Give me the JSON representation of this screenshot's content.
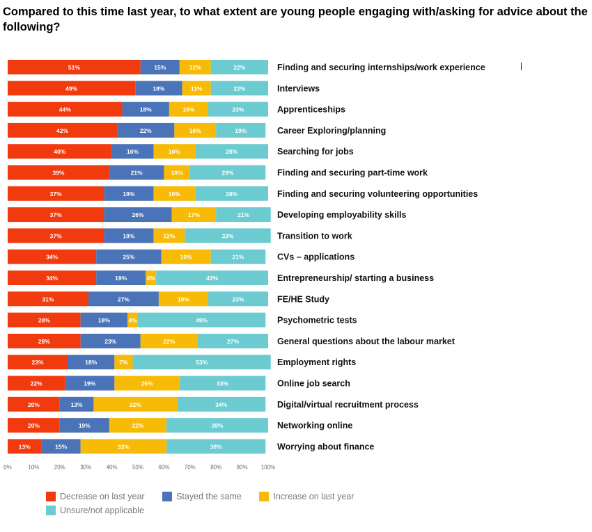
{
  "title": "Compared to this time last year, to what extent are young people engaging with/asking for advice about the following?",
  "chart_data": {
    "type": "bar",
    "orientation": "horizontal",
    "stacked": true,
    "title": "Compared to this time last year, to what extent are young people engaging with/asking for advice about the following?",
    "xlim": [
      0,
      100
    ],
    "x_ticks": [
      "0%",
      "10%",
      "20%",
      "30%",
      "40%",
      "50%",
      "60%",
      "70%",
      "80%",
      "90%",
      "100%"
    ],
    "legend_position": "bottom-left",
    "grid": false,
    "categories": [
      "Finding and securing internships/work experience",
      "Interviews",
      "Apprenticeships",
      "Career Exploring/planning",
      "Searching for jobs",
      "Finding and securing part-time work",
      "Finding and securing volunteering opportunities",
      "Developing employability skills",
      "Transition to work",
      "CVs – applications",
      "Entrepreneurship/ starting a business",
      "FE/HE Study",
      "Psychometric tests",
      "General questions about the labour market",
      "Employment rights",
      "Online job search",
      "Digital/virtual recruitment process",
      "Networking online",
      "Worrying about finance"
    ],
    "series": [
      {
        "name": "Decrease on last year",
        "color": "#f23a0f",
        "values": [
          51,
          49,
          44,
          42,
          40,
          39,
          37,
          37,
          37,
          34,
          34,
          31,
          28,
          28,
          23,
          22,
          20,
          20,
          13
        ]
      },
      {
        "name": "Stayed the same",
        "color": "#4a73b8",
        "values": [
          15,
          18,
          18,
          22,
          16,
          21,
          19,
          26,
          19,
          25,
          19,
          27,
          18,
          23,
          18,
          19,
          13,
          19,
          15
        ]
      },
      {
        "name": "Increase on last year",
        "color": "#f7bb07",
        "values": [
          12,
          11,
          15,
          16,
          16,
          10,
          16,
          17,
          12,
          19,
          4,
          19,
          4,
          22,
          7,
          25,
          32,
          22,
          33
        ]
      },
      {
        "name": "Unsure/not applicable",
        "color": "#6ccbd0",
        "values": [
          22,
          22,
          23,
          19,
          28,
          29,
          28,
          21,
          33,
          21,
          43,
          23,
          49,
          27,
          53,
          33,
          34,
          39,
          38
        ]
      }
    ]
  },
  "legend": {
    "items": [
      {
        "label": "Decrease on last year",
        "color": "#f23a0f"
      },
      {
        "label": "Stayed the same",
        "color": "#4a73b8"
      },
      {
        "label": "Increase on last year",
        "color": "#f7bb07"
      },
      {
        "label": "Unsure/not applicable",
        "color": "#6ccbd0"
      }
    ]
  }
}
